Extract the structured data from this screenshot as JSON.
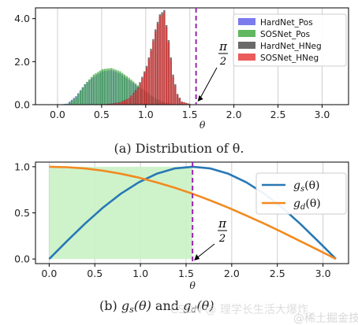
{
  "chart_data": [
    {
      "type": "histogram",
      "caption": "(a) Distribution of θ.",
      "xlabel": "θ",
      "ylabel": "",
      "xlim": [
        -0.25,
        3.3
      ],
      "ylim": [
        0,
        4.5
      ],
      "xticks": [
        "0.0",
        "0.5",
        "1.0",
        "1.5",
        "2.0",
        "2.5",
        "3.0"
      ],
      "yticks": [
        "0.0",
        "2.0",
        "4.0"
      ],
      "grid_x": true,
      "legend_position": "top-right",
      "vline": {
        "x": 1.5708,
        "color": "#9b22b0",
        "style": "dashed"
      },
      "annotation": {
        "text_num": "π",
        "text_den": "2",
        "points_to_x": 1.5708
      },
      "x": [
        0.0,
        0.1,
        0.2,
        0.3,
        0.4,
        0.5,
        0.6,
        0.7,
        0.8,
        0.9,
        1.0,
        1.05,
        1.1,
        1.15,
        1.2,
        1.25,
        1.3,
        1.35,
        1.4,
        1.5,
        1.6
      ],
      "series": [
        {
          "name": "HardNet_Pos",
          "color": "#5a5ae8",
          "values": [
            0.0,
            0.05,
            0.4,
            0.95,
            1.3,
            1.55,
            1.6,
            1.45,
            1.15,
            0.85,
            0.55,
            0.4,
            0.28,
            0.18,
            0.1,
            0.05,
            0.02,
            0.01,
            0.0,
            0.0,
            0.0
          ]
        },
        {
          "name": "SOSNet_Pos",
          "color": "#3aa63a",
          "values": [
            0.0,
            0.03,
            0.35,
            0.95,
            1.4,
            1.65,
            1.7,
            1.55,
            1.25,
            0.9,
            0.6,
            0.45,
            0.3,
            0.2,
            0.12,
            0.06,
            0.03,
            0.01,
            0.0,
            0.0,
            0.0
          ]
        },
        {
          "name": "HardNet_HNeg",
          "color": "#444444",
          "values": [
            0.0,
            0.0,
            0.0,
            0.0,
            0.0,
            0.02,
            0.05,
            0.12,
            0.3,
            0.8,
            1.8,
            2.6,
            3.5,
            4.2,
            4.4,
            3.0,
            1.4,
            0.5,
            0.15,
            0.02,
            0.0
          ]
        },
        {
          "name": "SOSNet_HNeg",
          "color": "#e63232",
          "values": [
            0.0,
            0.0,
            0.0,
            0.0,
            0.0,
            0.01,
            0.04,
            0.1,
            0.28,
            0.75,
            1.7,
            2.5,
            3.4,
            4.1,
            4.3,
            2.9,
            1.3,
            0.45,
            0.12,
            0.02,
            0.0
          ]
        }
      ]
    },
    {
      "type": "line",
      "caption_prefix": "(b)",
      "caption_g1": "g",
      "caption_s1": "s",
      "caption_arg1": "(θ)",
      "caption_and": "and",
      "caption_g2": "g",
      "caption_s2": "d",
      "caption_arg2": "(θ)",
      "xlabel": "θ",
      "xlim": [
        -0.15,
        3.28
      ],
      "ylim": [
        -0.05,
        1.05
      ],
      "xticks": [
        "0.0",
        "0.5",
        "1.0",
        "1.5",
        "2.0",
        "2.5",
        "3.0"
      ],
      "yticks": [
        "0.0",
        "0.5",
        "1.0"
      ],
      "grid_x": true,
      "legend_position": "top-right",
      "shaded_region": {
        "x": [
          0.0,
          1.5708
        ],
        "y": [
          0.0,
          1.0
        ],
        "color": "#c9f2c5"
      },
      "vline": {
        "x": 1.5708,
        "color": "#9b22b0",
        "style": "dashed"
      },
      "annotation": {
        "text_num": "π",
        "text_den": "2",
        "points_to_x": 1.5708
      },
      "x": [
        0.0,
        0.196,
        0.393,
        0.589,
        0.785,
        0.982,
        1.178,
        1.374,
        1.571,
        1.767,
        1.963,
        2.16,
        2.356,
        2.553,
        2.749,
        2.945,
        3.142
      ],
      "series": [
        {
          "name": "gs",
          "label_base": "g",
          "label_sub": "s",
          "label_arg": "(θ)",
          "color": "#2878b5",
          "values": [
            0.0,
            0.195,
            0.383,
            0.556,
            0.707,
            0.831,
            0.924,
            0.981,
            1.0,
            0.981,
            0.924,
            0.831,
            0.707,
            0.556,
            0.383,
            0.195,
            0.0
          ]
        },
        {
          "name": "gd",
          "label_base": "g",
          "label_sub": "d",
          "label_arg": "(θ)",
          "color": "#f28a1f",
          "values": [
            1.0,
            0.995,
            0.981,
            0.957,
            0.924,
            0.882,
            0.831,
            0.773,
            0.707,
            0.634,
            0.556,
            0.471,
            0.383,
            0.29,
            0.195,
            0.098,
            0.0
          ]
        }
      ]
    }
  ],
  "watermark": "CSDN @ 理学长生活大爆炸",
  "watermark_small": "@稀土掘金技术社区"
}
